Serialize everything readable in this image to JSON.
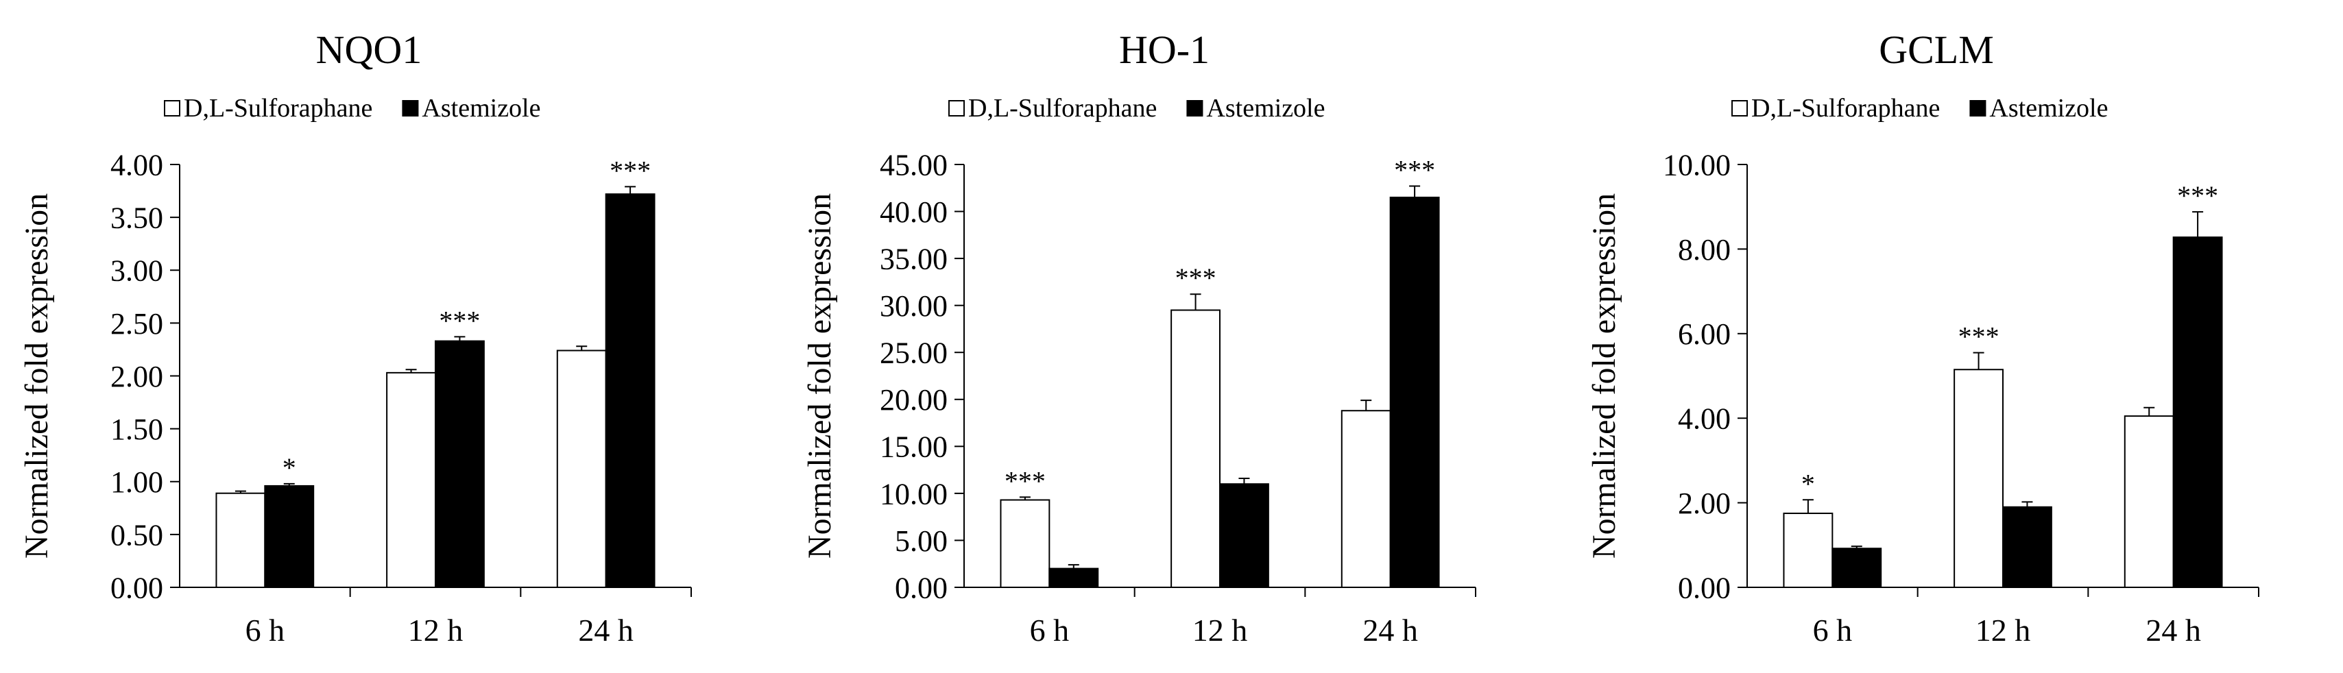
{
  "chart_data": [
    {
      "type": "bar",
      "title": "NQO1",
      "ylabel": "Normalized fold expression",
      "xlabel": "",
      "categories": [
        "6 h",
        "12 h",
        "24 h"
      ],
      "ylim": [
        0,
        4
      ],
      "ytick_labels": [
        "0.00",
        "0.50",
        "1.00",
        "1.50",
        "2.00",
        "2.50",
        "3.00",
        "3.50",
        "4.00"
      ],
      "legend": "top",
      "series": [
        {
          "name": "D,L-Sulforaphane",
          "color": "#ffffff",
          "values": [
            0.89,
            2.03,
            2.24
          ],
          "errors": [
            0.02,
            0.03,
            0.04
          ],
          "significance": [
            "",
            "",
            ""
          ]
        },
        {
          "name": "Astemizole",
          "color": "#000000",
          "values": [
            0.96,
            2.33,
            3.72
          ],
          "errors": [
            0.02,
            0.04,
            0.07
          ],
          "significance": [
            "*",
            "***",
            "***"
          ]
        }
      ]
    },
    {
      "type": "bar",
      "title": "HO-1",
      "ylabel": "Normalized fold expression",
      "xlabel": "",
      "categories": [
        "6 h",
        "12 h",
        "24 h"
      ],
      "ylim": [
        0,
        45
      ],
      "ytick_labels": [
        "0.00",
        "5.00",
        "10.00",
        "15.00",
        "20.00",
        "25.00",
        "30.00",
        "35.00",
        "40.00",
        "45.00"
      ],
      "legend": "top",
      "series": [
        {
          "name": "D,L-Sulforaphane",
          "color": "#ffffff",
          "values": [
            9.3,
            29.5,
            18.8
          ],
          "errors": [
            0.3,
            1.7,
            1.1
          ],
          "significance": [
            "***",
            "***",
            ""
          ]
        },
        {
          "name": "Astemizole",
          "color": "#000000",
          "values": [
            2.0,
            11.0,
            41.5
          ],
          "errors": [
            0.4,
            0.6,
            1.2
          ],
          "significance": [
            "",
            "",
            "***"
          ]
        }
      ]
    },
    {
      "type": "bar",
      "title": "GCLM",
      "ylabel": "Normalized fold expression",
      "xlabel": "",
      "categories": [
        "6 h",
        "12 h",
        "24 h"
      ],
      "ylim": [
        0,
        10
      ],
      "ytick_labels": [
        "0.00",
        "2.00",
        "4.00",
        "6.00",
        "8.00",
        "10.00"
      ],
      "legend": "top",
      "series": [
        {
          "name": "D,L-Sulforaphane",
          "color": "#ffffff",
          "values": [
            1.75,
            5.15,
            4.05
          ],
          "errors": [
            0.32,
            0.4,
            0.2
          ],
          "significance": [
            "*",
            "***",
            ""
          ]
        },
        {
          "name": "Astemizole",
          "color": "#000000",
          "values": [
            0.92,
            1.9,
            8.28
          ],
          "errors": [
            0.05,
            0.12,
            0.6
          ],
          "significance": [
            "",
            "",
            "***"
          ]
        }
      ]
    }
  ]
}
